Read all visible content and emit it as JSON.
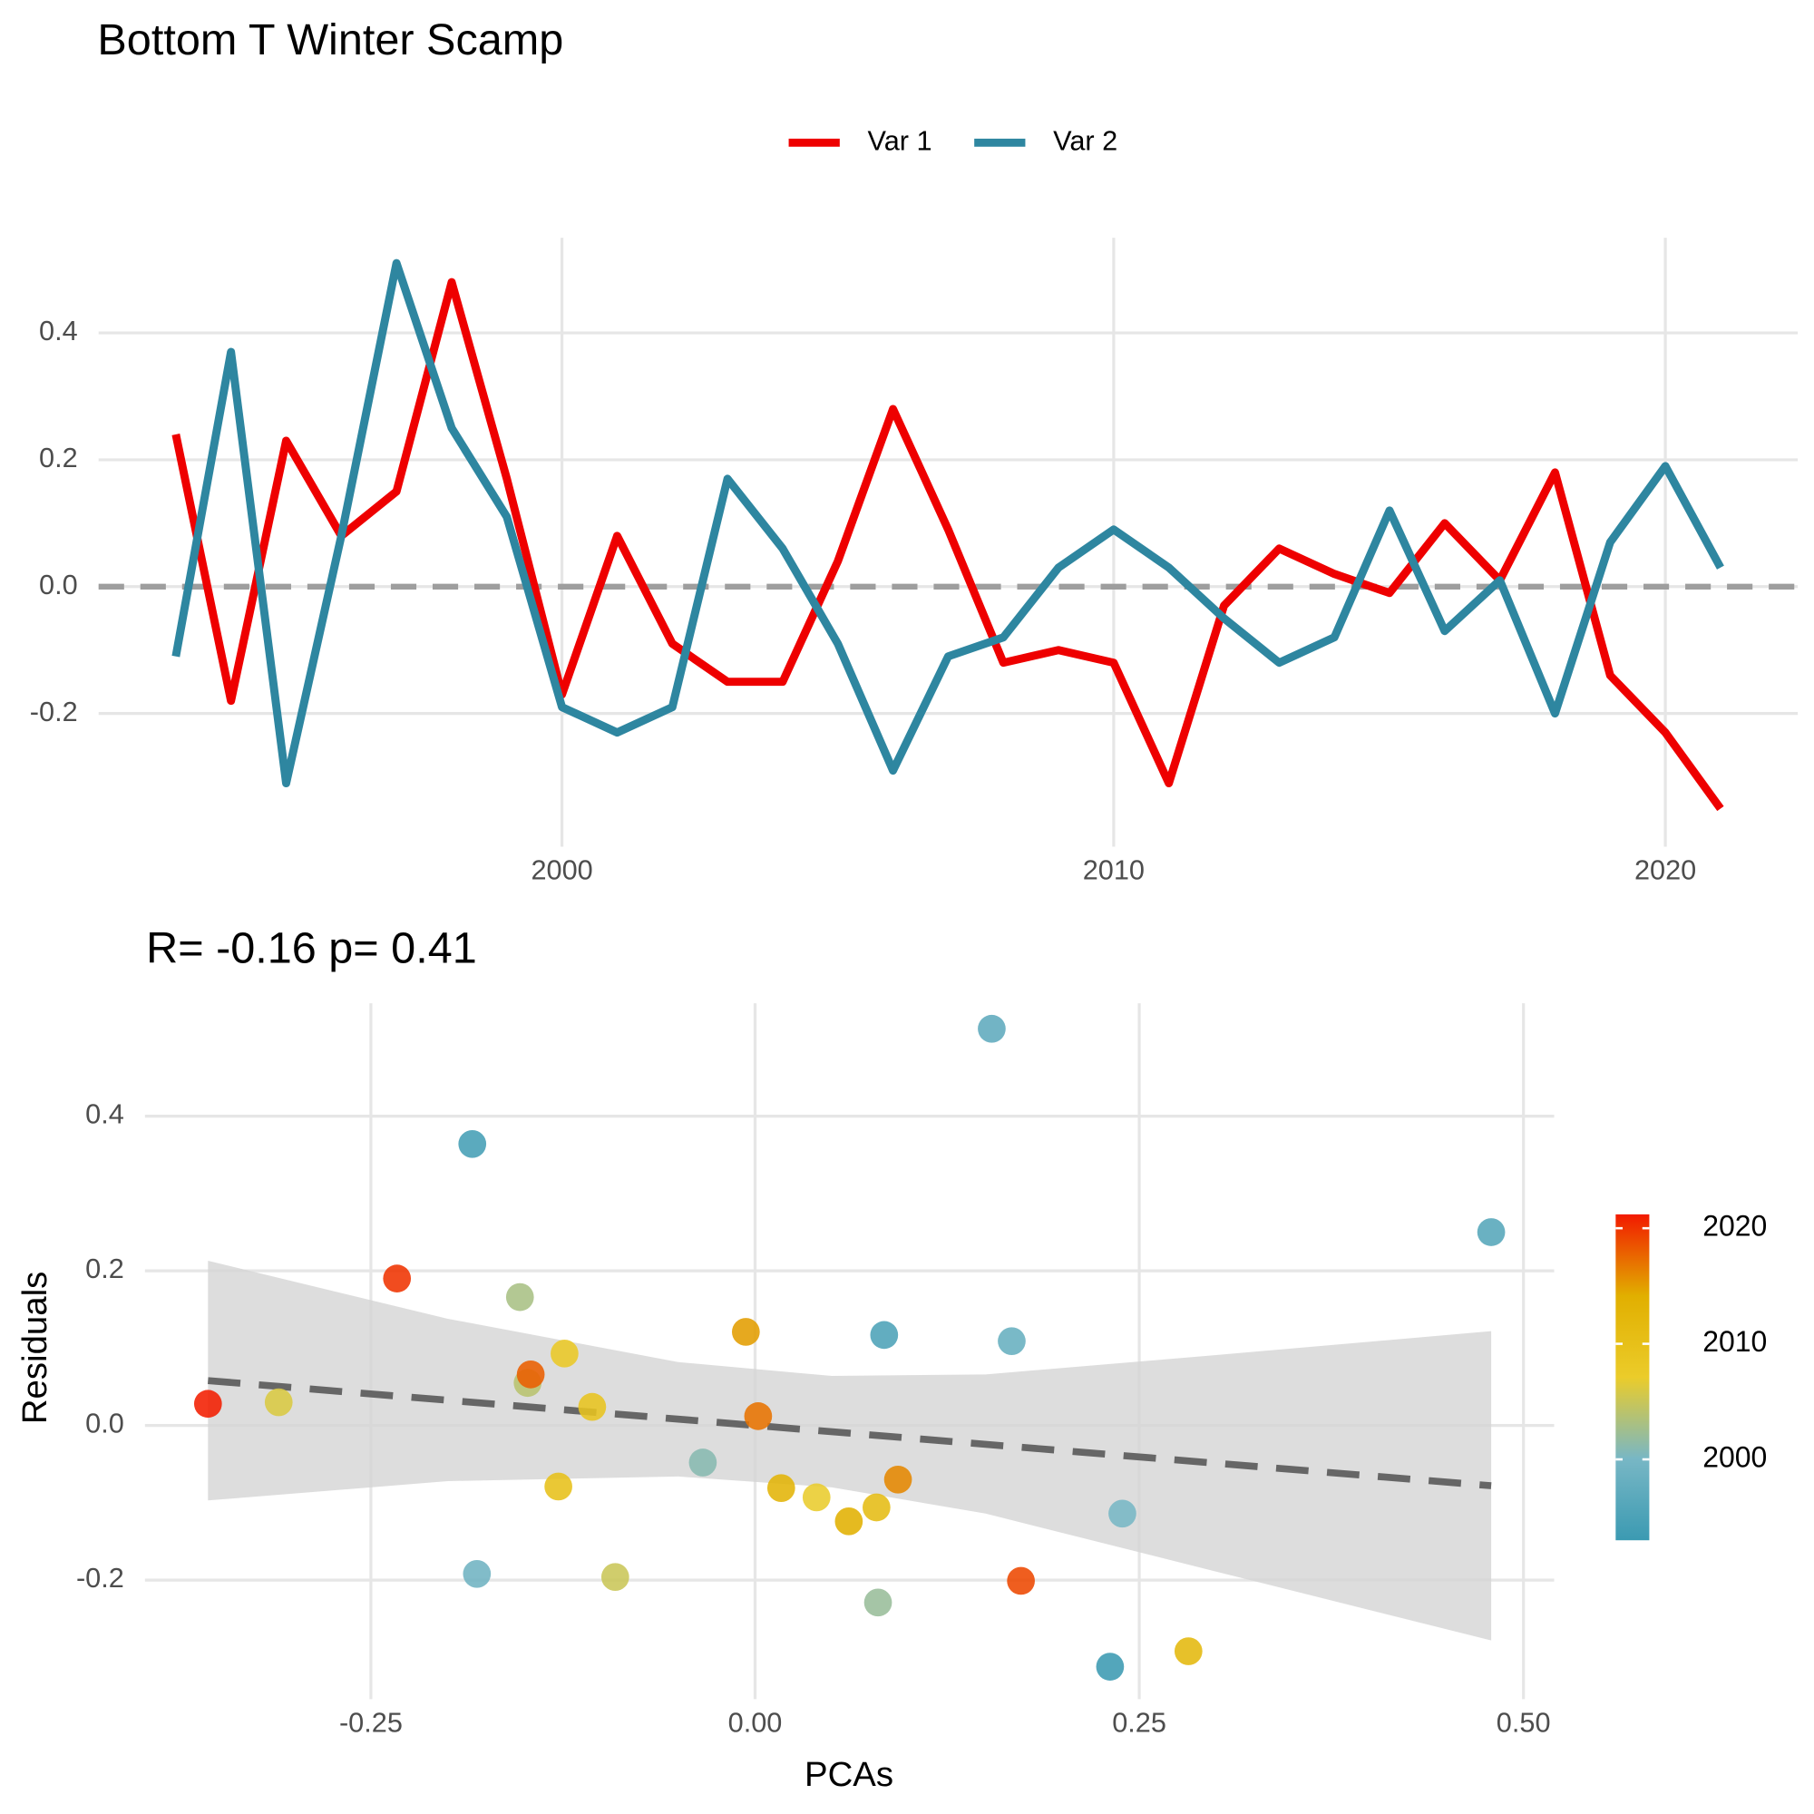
{
  "chart_data": [
    {
      "type": "line",
      "title": "Bottom T Winter Scamp",
      "x": [
        1993,
        1994,
        1995,
        1996,
        1997,
        1998,
        1999,
        2000,
        2001,
        2002,
        2003,
        2004,
        2005,
        2006,
        2007,
        2008,
        2009,
        2010,
        2011,
        2012,
        2013,
        2014,
        2015,
        2016,
        2017,
        2018,
        2019,
        2020,
        2021
      ],
      "series": [
        {
          "name": "Var 1",
          "color": "#ee0000",
          "values": [
            0.24,
            -0.18,
            0.23,
            0.08,
            0.15,
            0.48,
            0.17,
            -0.17,
            0.08,
            -0.09,
            -0.15,
            -0.15,
            0.04,
            0.28,
            0.09,
            -0.12,
            -0.1,
            -0.12,
            -0.31,
            -0.03,
            0.06,
            0.02,
            -0.01,
            0.1,
            0.01,
            0.18,
            -0.14,
            -0.23,
            -0.35
          ]
        },
        {
          "name": "Var 2",
          "color": "#2e86a0",
          "values": [
            -0.11,
            0.37,
            -0.31,
            0.08,
            0.51,
            0.25,
            0.11,
            -0.19,
            -0.23,
            -0.19,
            0.17,
            0.06,
            -0.09,
            -0.29,
            -0.11,
            -0.08,
            0.03,
            0.09,
            0.03,
            -0.05,
            -0.12,
            -0.08,
            0.12,
            -0.07,
            0.01,
            -0.2,
            0.07,
            0.19,
            0.03
          ]
        }
      ],
      "xlim": [
        1991.6,
        2022.4
      ],
      "ylim": [
        -0.41,
        0.55
      ],
      "xticks": [
        2000,
        2010,
        2020
      ],
      "yticks": [
        -0.2,
        {
          "value": 0,
          "label": "0.0"
        },
        0.2,
        0.4
      ],
      "hline": 0,
      "grid": true,
      "legend": "top"
    },
    {
      "type": "scatter",
      "title": "R= -0.16  p= 0.41",
      "x_label": "PCAs",
      "y_label": "Residuals",
      "x": [
        -0.356,
        -0.31,
        -0.233,
        -0.184,
        -0.153,
        -0.148,
        -0.146,
        -0.124,
        -0.106,
        -0.128,
        -0.181,
        -0.091,
        -0.034,
        -0.006,
        0.002,
        0.017,
        0.04,
        0.061,
        0.079,
        0.08,
        0.084,
        0.093,
        0.154,
        0.167,
        0.173,
        0.231,
        0.239,
        0.282,
        0.479
      ],
      "y": [
        0.028,
        0.03,
        0.19,
        0.364,
        0.166,
        0.055,
        0.066,
        0.093,
        0.024,
        -0.079,
        -0.192,
        -0.196,
        -0.048,
        0.121,
        0.012,
        -0.081,
        -0.093,
        -0.124,
        -0.106,
        -0.229,
        0.117,
        -0.07,
        0.513,
        0.109,
        -0.201,
        -0.312,
        -0.114,
        -0.292,
        0.25
      ],
      "color_values": [
        2021,
        2006,
        2020,
        1994,
        2003,
        2004,
        2018,
        2008,
        2009,
        2010,
        1999,
        2005,
        2001,
        2015,
        2017,
        2013,
        2007,
        2014,
        2011,
        2002,
        1995,
        2016,
        1997,
        1998,
        2019,
        1993,
        2000,
        2012,
        1996
      ],
      "colorbar": {
        "lim": [
          1993,
          2021.2
        ],
        "ticks": [
          2000,
          2010,
          2020
        ],
        "colors": [
          "#3B9AB2",
          "#78B7C5",
          "#EBCC2A",
          "#E1AF00",
          "#F21A00"
        ]
      },
      "fit": {
        "x": [
          -0.356,
          0.479
        ],
        "y": [
          0.058,
          -0.078
        ]
      },
      "band": {
        "x": [
          -0.356,
          -0.2,
          -0.05,
          0.05,
          0.15,
          0.3,
          0.479
        ],
        "lower": [
          -0.097,
          -0.072,
          -0.066,
          -0.08,
          -0.114,
          -0.189,
          -0.278
        ],
        "upper": [
          0.213,
          0.138,
          0.082,
          0.064,
          0.066,
          0.091,
          0.122
        ]
      },
      "xlim": [
        -0.397,
        0.52
      ],
      "ylim": [
        -0.354,
        0.546
      ],
      "xticks": [
        {
          "value": -0.25,
          "label": "-0.25"
        },
        {
          "value": 0,
          "label": "0.00"
        },
        0.25,
        {
          "value": 0.5,
          "label": "0.50"
        }
      ],
      "yticks": [
        -0.2,
        {
          "value": 0,
          "label": "0.0"
        },
        0.2,
        0.4
      ],
      "grid": true
    }
  ]
}
